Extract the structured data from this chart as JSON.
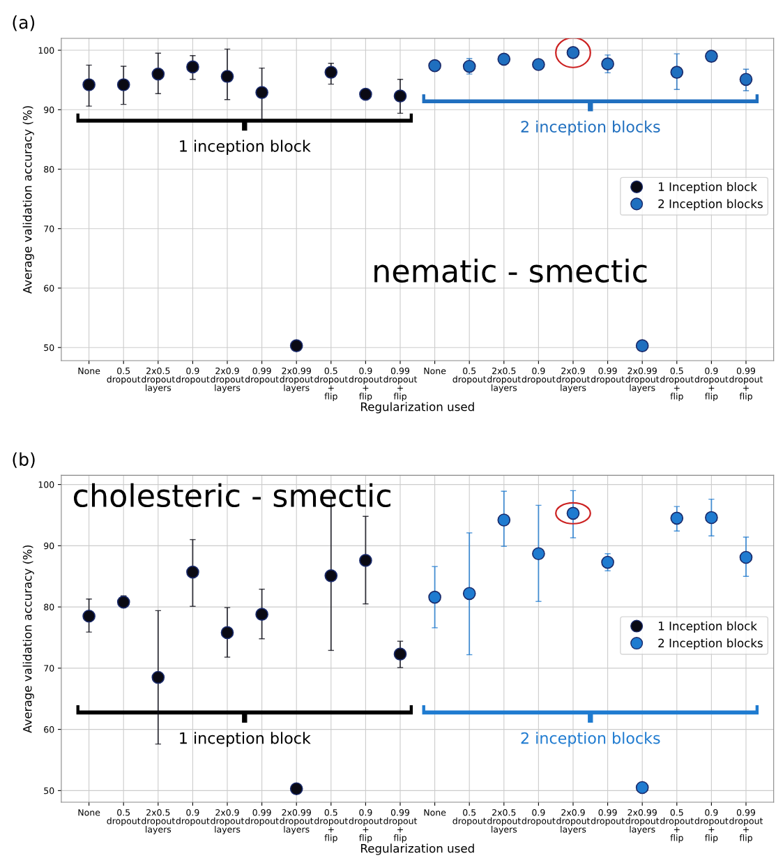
{
  "chart_data": [
    {
      "type": "scatter",
      "title": "(a)",
      "xlabel": "Regularization used",
      "ylabel": "Average validation accuracy (%)",
      "categories": [
        "None",
        "0.5\ndropout",
        "2x0.5\ndropout\nlayers",
        "0.9\ndropout",
        "2x0.9\ndropout\nlayers",
        "0.99\ndropout",
        "2x0.99\ndropout\nlayers",
        "0.5\ndropout\n+\nflip",
        "0.9\ndropout\n+\nflip",
        "0.99\ndropout\n+\nflip",
        "None",
        "0.5\ndropout",
        "2x0.5\ndropout\nlayers",
        "0.9\ndropout",
        "2x0.9\ndropout\nlayers",
        "0.99\ndropout",
        "2x0.99\ndropout\nlayers",
        "0.5\ndropout\n+\nflip",
        "0.9\ndropout\n+\nflip",
        "0.99\ndropout\n+\nflip"
      ],
      "series": [
        {
          "name": "1 Inception block",
          "color": "#0a0a14",
          "values": [
            94.2,
            94.2,
            96.0,
            97.2,
            95.6,
            92.9,
            50.3,
            96.3,
            92.6,
            92.3,
            null,
            null,
            null,
            null,
            null,
            null,
            null,
            null,
            null,
            null
          ],
          "errors": [
            [
              90.6,
              97.5
            ],
            [
              90.9,
              97.3
            ],
            [
              92.7,
              99.5
            ],
            [
              95.1,
              99.1
            ],
            [
              91.7,
              100.2
            ],
            [
              88.1,
              97.0
            ],
            null,
            [
              94.3,
              97.8
            ],
            null,
            [
              89.4,
              95.1
            ],
            null,
            null,
            null,
            null,
            null,
            null,
            null,
            null,
            null,
            null
          ]
        },
        {
          "name": "2 Inception blocks",
          "color": "#1f6fbf",
          "values": [
            null,
            null,
            null,
            null,
            null,
            null,
            null,
            null,
            null,
            null,
            97.4,
            97.3,
            98.5,
            97.6,
            99.6,
            97.7,
            50.3,
            96.3,
            99.0,
            95.1
          ],
          "errors": [
            null,
            null,
            null,
            null,
            null,
            null,
            null,
            null,
            null,
            null,
            null,
            [
              96.0,
              98.6
            ],
            null,
            null,
            null,
            [
              96.2,
              99.2
            ],
            null,
            [
              93.4,
              99.4
            ],
            null,
            [
              93.2,
              96.8
            ]
          ]
        }
      ],
      "ylim": [
        47.8,
        102
      ],
      "yticks": [
        50,
        60,
        70,
        80,
        90,
        100
      ],
      "grid": true,
      "legend": "right",
      "marker": "circle",
      "annotations": [
        "nematic - smectic",
        "1 inception block",
        "2 inception blocks"
      ]
    },
    {
      "type": "scatter",
      "title": "(b)",
      "xlabel": "Regularization used",
      "ylabel": "Average validation accuracy (%)",
      "categories": [
        "None",
        "0.5\ndropout",
        "2x0.5\ndropout\nlayers",
        "0.9\ndropout",
        "2x0.9\ndropout\nlayers",
        "0.99\ndropout",
        "2x0.99\ndropout\nlayers",
        "0.5\ndropout\n+\nflip",
        "0.9\ndropout\n+\nflip",
        "0.99\ndropout\n+\nflip",
        "None",
        "0.5\ndropout",
        "2x0.5\ndropout\nlayers",
        "0.9\ndropout",
        "2x0.9\ndropout\nlayers",
        "0.99\ndropout",
        "2x0.99\ndropout\nlayers",
        "0.5\ndropout\n+\nflip",
        "0.9\ndropout\n+\nflip",
        "0.99\ndropout\n+\nflip"
      ],
      "series": [
        {
          "name": "1 Inception block",
          "color": "#0a0a14",
          "values": [
            78.5,
            80.8,
            68.5,
            85.7,
            75.8,
            78.8,
            50.3,
            85.1,
            87.6,
            72.3,
            null,
            null,
            null,
            null,
            null,
            null,
            null,
            null,
            null,
            null
          ],
          "errors": [
            [
              75.9,
              81.3
            ],
            [
              80.0,
              81.8
            ],
            [
              57.6,
              79.4
            ],
            [
              80.1,
              91.0
            ],
            [
              71.8,
              79.9
            ],
            [
              74.8,
              82.9
            ],
            null,
            [
              72.9,
              97.8
            ],
            [
              80.5,
              94.8
            ],
            [
              70.1,
              74.4
            ],
            null,
            null,
            null,
            null,
            null,
            null,
            null,
            null,
            null,
            null
          ]
        },
        {
          "name": "2 Inception blocks",
          "color": "#1f7bd0",
          "values": [
            null,
            null,
            null,
            null,
            null,
            null,
            null,
            null,
            null,
            null,
            81.6,
            82.2,
            94.2,
            88.7,
            95.3,
            87.3,
            50.5,
            94.5,
            94.6,
            88.1
          ],
          "errors": [
            null,
            null,
            null,
            null,
            null,
            null,
            null,
            null,
            null,
            null,
            [
              76.6,
              86.6
            ],
            [
              72.2,
              92.1
            ],
            [
              89.9,
              98.9
            ],
            [
              80.9,
              96.6
            ],
            [
              91.3,
              99.0
            ],
            [
              85.9,
              88.7
            ],
            null,
            [
              92.4,
              96.4
            ],
            [
              91.6,
              97.6
            ],
            [
              85.0,
              91.4
            ]
          ]
        }
      ],
      "ylim": [
        48.1,
        101.5
      ],
      "yticks": [
        50,
        60,
        70,
        80,
        90,
        100
      ],
      "grid": true,
      "legend": "right",
      "marker": "circle",
      "annotations": [
        "cholesteric - smectic",
        "1 inception block",
        "2 inception blocks"
      ]
    }
  ]
}
